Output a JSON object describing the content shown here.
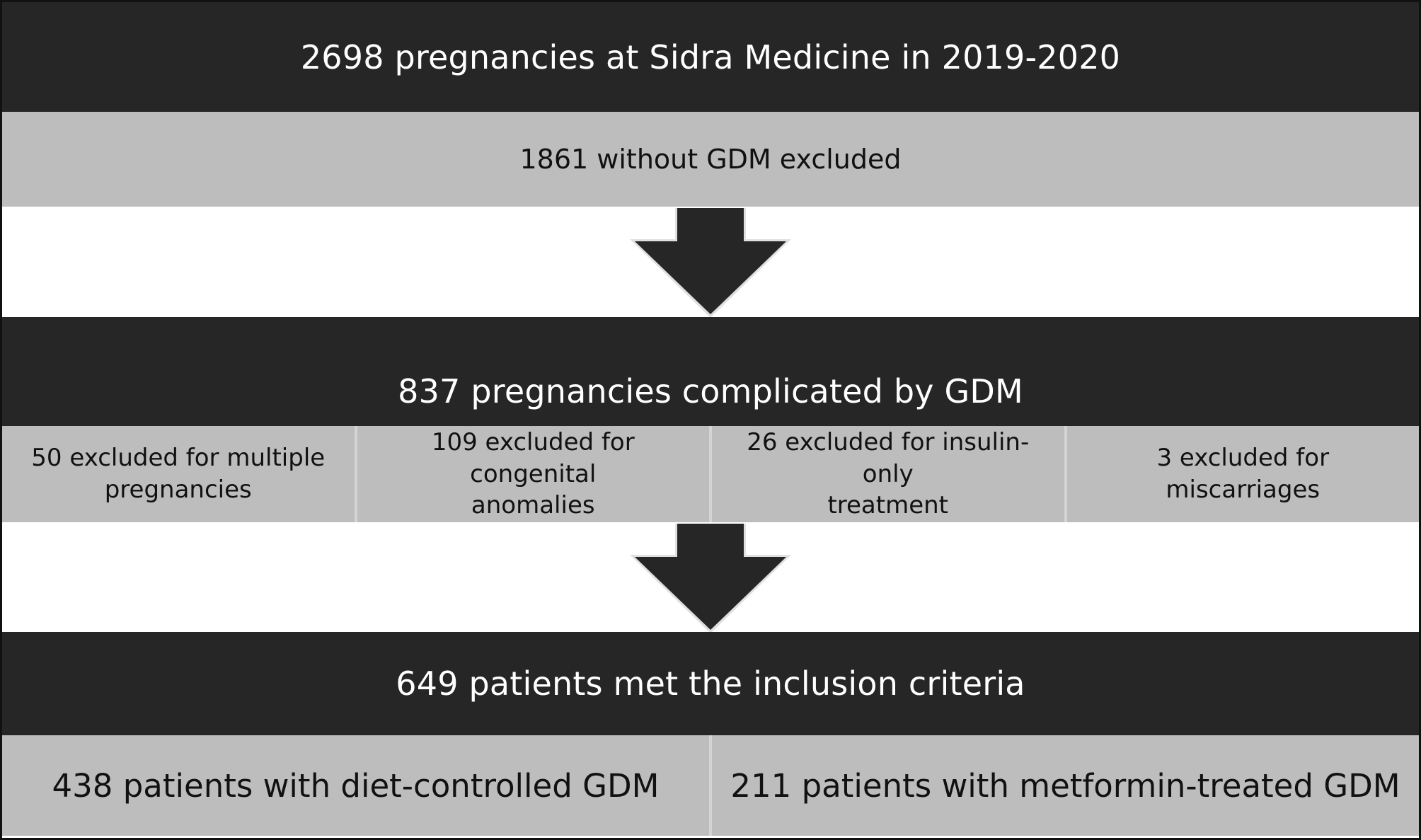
{
  "flowchart": {
    "title": "2698 pregnancies at Sidra Medicine in 2019-2020",
    "exclusion_1": "1861 without GDM excluded",
    "stage_2": "837 pregnancies complicated by GDM",
    "exclusions_2": [
      {
        "line1": "50 excluded for multiple",
        "line2": "pregnancies"
      },
      {
        "line1": "109 excluded for congenital",
        "line2": "anomalies"
      },
      {
        "line1": "26 excluded for insulin-only",
        "line2": "treatment"
      },
      {
        "line1": "3 excluded for miscarriages",
        "line2": ""
      }
    ],
    "stage_3": "649 patients met the inclusion criteria",
    "groups": [
      "438 patients with diet-controlled GDM",
      "211 patients with metformin-treated GDM"
    ]
  },
  "colors": {
    "dark_band": "#262626",
    "grey_band": "#bdbdbd",
    "divider": "#d4d4d4",
    "arrow": "#262626",
    "arrow_outline": "#e0e0e0"
  },
  "icons": {
    "arrow": "down-arrow-icon"
  }
}
